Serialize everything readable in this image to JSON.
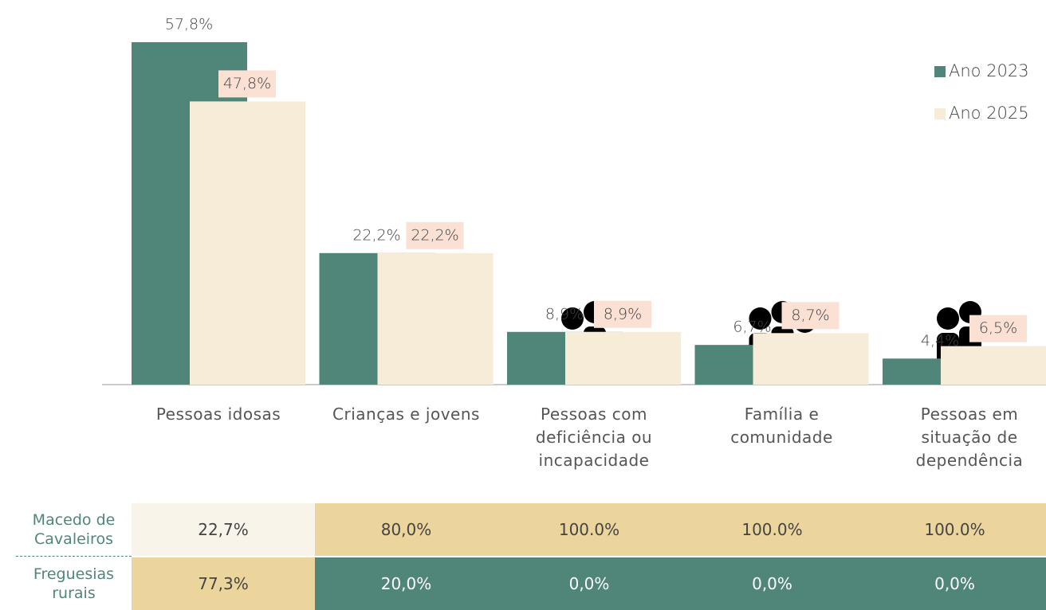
{
  "chart_data": {
    "type": "bar",
    "categories": [
      "Pessoas idosas",
      "Crianças e jovens",
      "Pessoas com\ndeficiência ou\nincapacidade",
      "Família e\ncomunidade",
      "Pessoas em\nsituação de\ndependência"
    ],
    "series": [
      {
        "name": "Ano 2023",
        "color": "#50857a",
        "values": [
          57.8,
          22.2,
          8.9,
          6.7,
          4.4
        ],
        "value_labels": [
          "57,8%",
          "22,2%",
          "8,9%",
          "6,7%",
          "4,4%"
        ]
      },
      {
        "name": "Ano 2025",
        "color": "#f7ecd8",
        "values": [
          47.8,
          22.2,
          8.9,
          8.7,
          6.5
        ],
        "value_labels": [
          "47,8%",
          "22,2%",
          "8,9%",
          "8,7%",
          "6,5%"
        ]
      }
    ],
    "ylim": [
      0,
      60
    ],
    "legend": "upper right"
  },
  "table": {
    "rows": [
      {
        "label": "Macedo de\nCavaleiros",
        "cells": [
          "22,7%",
          "80,0%",
          "100.0%",
          "100.0%",
          "100.0%"
        ]
      },
      {
        "label": "Freguesias\nrurais",
        "cells": [
          "77,3%",
          "20,0%",
          "0,0%",
          "0,0%",
          "0,0%"
        ]
      }
    ]
  }
}
